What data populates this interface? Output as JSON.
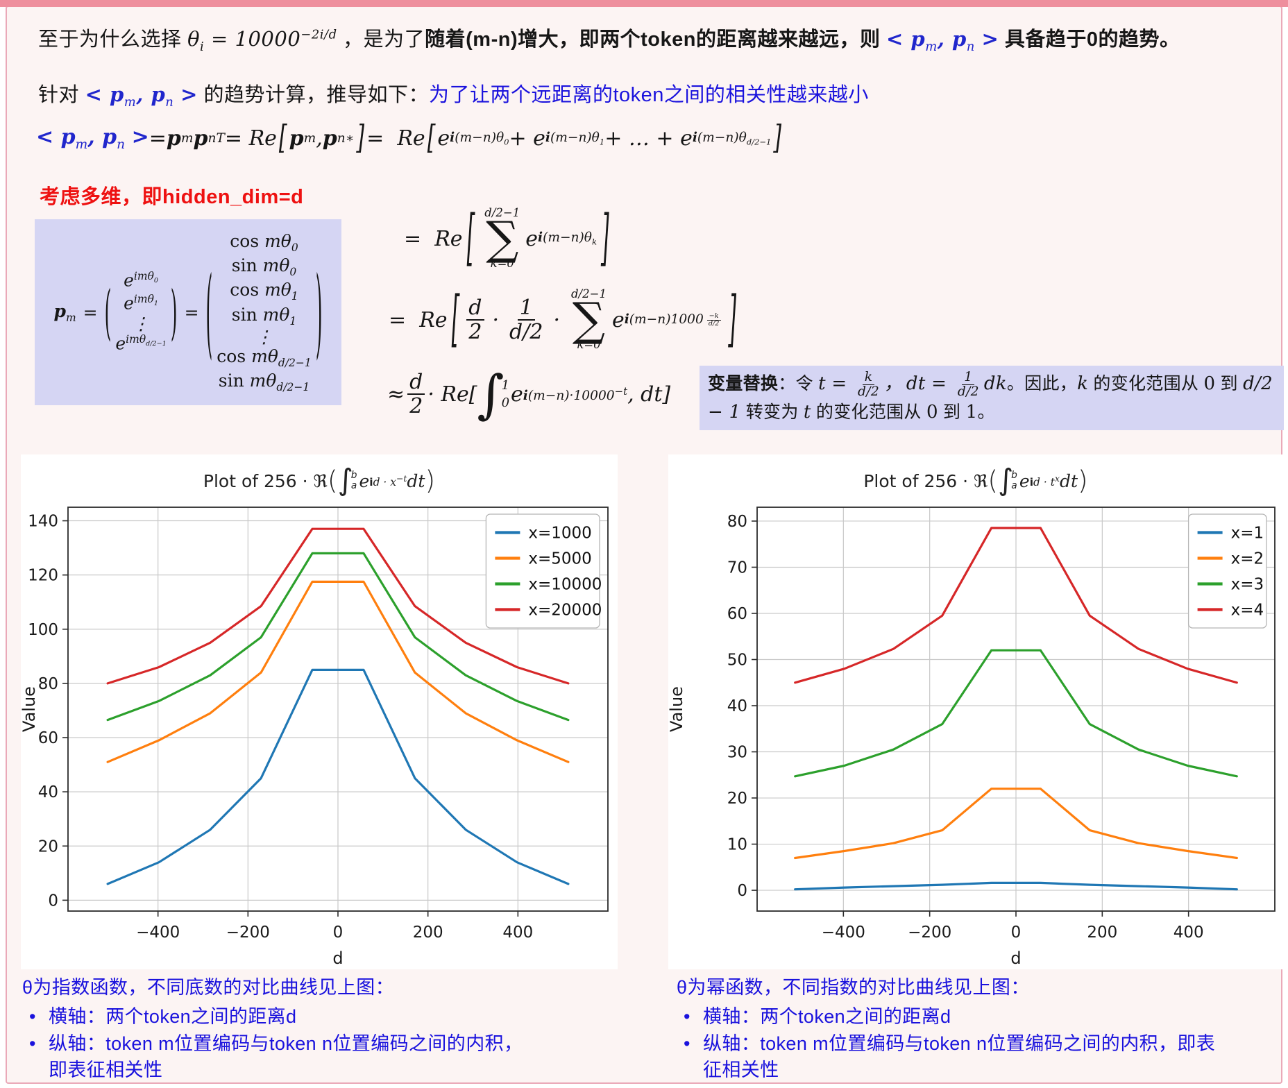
{
  "frame": {
    "bg": "#fcf4f3",
    "border_color": "#eaa9b8",
    "topbar_color": "#ee8f9d"
  },
  "header": {
    "line1_html": "至于为什么选择 <span class='math'>θ<sub>i</sub> = 10000<sup>−2i/d</sup></span> ，是为了<b>随着(m-n)增大，即两个token的距离越来越远，则</b> <span class='math mblue'><b>&lt; p</b><sub>m</sub><b>, p</b><sub>n</sub> <b>&gt;</b></span> <b>具备趋于0的趋势。</b>",
    "line2_html": "针对 <span class='math mblue'><b>&lt; p</b><sub>m</sub><b>, p</b><sub>n</sub> <b>&gt;</b></span> 的趋势计算，推导如下：<span class='bluetext'>为了让两个远距离的token之间的相关性越来越小</span>"
  },
  "derivation": {
    "eq1_html": "<span class='mblue'><b>&lt; p</b><sub>m</sub><b>, p</b><sub>n</sub> <b>&gt;</b></span>= <b>p</b><sub>m</sub><b>p</b><sub>n</sub><sup>T</sup> = Re <span class='tbr2'>[</span><b>p</b><sub>m</sub>, <b>p</b><sub>n</sub><sup>∗</sup><span class='tbr2'>]</span> =&nbsp; Re <span class='tbr2'>[</span>e<sup><b>i</b>(m−n)θ<sub>0</sub></sup> + e<sup><b>i</b>(m−n)θ<sub>1</sub></sup> + … + e<sup><b>i</b>(m−n)θ<sub>d/2−1</sub></sup><span class='tbr2'>]</span>",
    "multidim_note": "考虑多维，即hidden_dim=d",
    "matrix_html": "<span><b>p</b><sub>m</sub></span> <span class='meq'>=</span> <span class='pstretch p4'>(</span><span class='vec'><span>e<sup>imθ<sub>0</sub></sup></span><span>e<sup>imθ<sub>1</sub></sup></span><span class='vd'>⋮</span><span>e<sup>imθ<sub>d/2−1</sub></sup></span></span><span class='pstretch p4'>)</span> <span class='meq'>=</span> <span class='pstretch p7'>(</span><span class='vec'><span><span class='rm'>cos</span> mθ<sub>0</sub></span><span><span class='rm'>sin</span> mθ<sub>0</sub></span><span><span class='rm'>cos</span> mθ<sub>1</sub></span><span><span class='rm'>sin</span> mθ<sub>1</sub></span><span class='vd'>⋮</span><span><span class='rm'>cos</span> mθ<sub>d/2−1</sub></span><span><span class='rm'>sin</span> mθ<sub>d/2−1</sub></span></span><span class='pstretch p7'>)</span>",
    "eq2_html": "=&nbsp; Re <span class='tbr3'>[</span><span class='sum'><span class='lim'>d/2−1</span><span class='sig'>∑</span><span class='lim'>k=0</span></span> e<sup><b>i</b>(m−n)θ<sub>k</sub></sup><span class='tbr3'>]</span>",
    "eq3_html": "=&nbsp; Re <span class='tbr3'>[</span><span class='frac'><span class='num'>d</span><span class='den'>2</span></span><span class='cdot'>·</span><span class='frac'><span class='num'>1</span><span class='den'>d/2</span></span><span class='cdot'>·</span><span class='sum'><span class='lim'>d/2−1</span><span class='sig'>∑</span><span class='lim'>k=0</span></span> e<sup><b>i</b>(m−n)1000<span class='frac tiny'><span class='num'>−k</span><span class='den'>d/2</span></span></sup><span class='tbr3'>]</span>",
    "eq4_html": "≈ <span class='frac'><span class='num'>d</span><span class='den'>2</span></span> · Re[<span class='intwrap'><span class='int'>∫</span><span class='ilims'><span>1</span><span>0</span></span></span>e<sup><b>i</b>(m−n)·10000<sup>−t</sup></sup>, dt]",
    "subst_note_html": "<b>变量替换</b>：令 <span class='math'>t = <span class='frac tiny2'><span class='num'>k</span><span class='den'>d/2</span></span>，&thinsp;dt = <span class='frac tiny2'><span class='num'>1</span><span class='den'>d/2</span></span>dk</span>。因此，<span class='math'>k</span> 的变化范围从 <span class='math rm'>0</span> 到 <span class='math'>d/2 − 1</span> 转变为 <span class='math'>t</span> 的变化范围从 <span class='math rm'>0</span> 到 <span class='math rm'>1</span>。"
  },
  "captions": {
    "left": {
      "title": "θ为指数函数，不同底数的对比曲线见上图：",
      "bullets": [
        "横轴：两个token之间的距离d",
        "纵轴：token m位置编码与token n位置编码之间的内积，即表征相关性"
      ]
    },
    "right": {
      "title": "θ为幂函数，不同指数的对比曲线见上图：",
      "bullets": [
        "横轴：两个token之间的距离d",
        "纵轴：token m位置编码与token n位置编码之间的内积，即表征相关性"
      ]
    }
  },
  "chart_data": [
    {
      "type": "line",
      "title": "Plot of 256 · R(integral_a^b e^{id·x^{-t}} dt)",
      "title_html": "Plot of 256 · ℜ<span class='tp'>(</span><span class='ti'>∫</span><span class='tl'><span>b</span><span>a</span></span><i>e</i><sup><b>i</b><i>d · x</i><sup><i>−t</i></sup></sup> <i>dt</i><span class='tp'>)</span>",
      "xlabel": "d",
      "ylabel": "Value",
      "xlim": [
        -600,
        600
      ],
      "ylim": [
        -4,
        145
      ],
      "xticks": [
        -400,
        -200,
        0,
        200,
        400
      ],
      "yticks": [
        0,
        20,
        40,
        60,
        80,
        100,
        120,
        140
      ],
      "grid": true,
      "legend_position": "top-right",
      "x": [
        -512,
        -398,
        -284,
        -171,
        -57,
        57,
        171,
        284,
        398,
        512
      ],
      "series": [
        {
          "name": "x=1000",
          "color": "#1f77b4",
          "values": [
            6,
            14,
            26,
            45,
            85,
            85,
            45,
            26,
            14,
            6
          ]
        },
        {
          "name": "x=5000",
          "color": "#ff7f0e",
          "values": [
            51,
            59,
            69,
            84,
            117.5,
            117.5,
            84,
            69,
            59,
            51
          ]
        },
        {
          "name": "x=10000",
          "color": "#2ca02c",
          "values": [
            66.5,
            73.5,
            83,
            97,
            128,
            128,
            97,
            83,
            73.5,
            66.5
          ]
        },
        {
          "name": "x=20000",
          "color": "#d62728",
          "values": [
            80,
            86,
            95,
            108.5,
            137,
            137,
            108.5,
            95,
            86,
            80
          ]
        }
      ]
    },
    {
      "type": "line",
      "title": "Plot of 256 · R(integral_a^b e^{id·t^x} dt)",
      "title_html": "Plot of 256 · ℜ<span class='tp'>(</span><span class='ti'>∫</span><span class='tl'><span>b</span><span>a</span></span><i>e</i><sup><b>i</b><i>d · t</i><sup><i>x</i></sup></sup> <i>dt</i><span class='tp'>)</span>",
      "xlabel": "d",
      "ylabel": "Value",
      "xlim": [
        -600,
        600
      ],
      "ylim": [
        -4.5,
        83
      ],
      "xticks": [
        -400,
        -200,
        0,
        200,
        400
      ],
      "yticks": [
        0,
        10,
        20,
        30,
        40,
        50,
        60,
        70,
        80
      ],
      "grid": true,
      "legend_position": "top-right",
      "x": [
        -512,
        -398,
        -284,
        -171,
        -57,
        57,
        171,
        284,
        398,
        512
      ],
      "series": [
        {
          "name": "x=1",
          "color": "#1f77b4",
          "values": [
            0.2,
            0.6,
            0.9,
            1.2,
            1.6,
            1.6,
            1.2,
            0.9,
            0.6,
            0.2
          ]
        },
        {
          "name": "x=2",
          "color": "#ff7f0e",
          "values": [
            7,
            8.5,
            10.2,
            13,
            22,
            22,
            13,
            10.2,
            8.5,
            7
          ]
        },
        {
          "name": "x=3",
          "color": "#2ca02c",
          "values": [
            24.7,
            27,
            30.5,
            36,
            52,
            52,
            36,
            30.5,
            27,
            24.7
          ]
        },
        {
          "name": "x=4",
          "color": "#d62728",
          "values": [
            45,
            48,
            52.3,
            59.5,
            78.5,
            78.5,
            59.5,
            52.3,
            48,
            45
          ]
        }
      ]
    }
  ]
}
